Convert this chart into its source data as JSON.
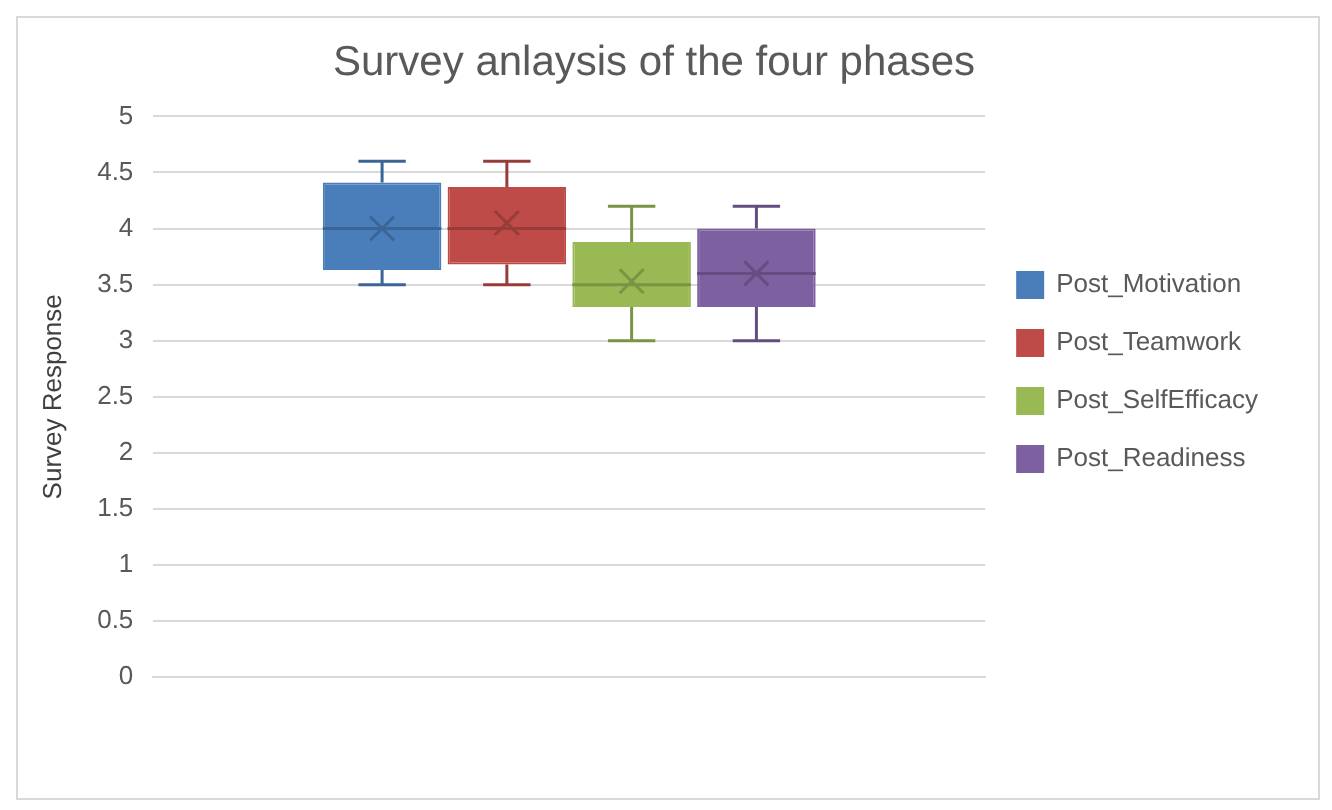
{
  "chart_data": {
    "type": "box",
    "title": "Survey anlaysis of the four phases",
    "ylabel": "Survey Response",
    "categories": [
      null
    ],
    "ylim": [
      0,
      5
    ],
    "yticks": [
      0,
      0.5,
      1,
      1.5,
      2,
      2.5,
      3,
      3.5,
      4,
      4.5,
      5
    ],
    "grid": "y",
    "legend": "right",
    "series": [
      {
        "name": "Post_Motivation",
        "color": "#4a7ebb",
        "boxes": [
          {
            "low": 3.5,
            "q1": 3.63,
            "median": 4,
            "q3": 4.41,
            "high": 4.6,
            "mean": 4
          }
        ]
      },
      {
        "name": "Post_Teamwork",
        "color": "#be4b48",
        "boxes": [
          {
            "low": 3.5,
            "q1": 3.68,
            "median": 4,
            "q3": 4.37,
            "high": 4.6,
            "mean": 4.05
          }
        ]
      },
      {
        "name": "Post_SelfEfficacy",
        "color": "#98b954",
        "boxes": [
          {
            "low": 3,
            "q1": 3.3,
            "median": 3.5,
            "q3": 3.88,
            "high": 4.2,
            "mean": 3.53
          }
        ]
      },
      {
        "name": "Post_Readiness",
        "color": "#7d60a0",
        "boxes": [
          {
            "low": 3,
            "q1": 3.3,
            "median": 3.6,
            "q3": 4,
            "high": 4.2,
            "mean": 3.6
          }
        ]
      }
    ]
  }
}
